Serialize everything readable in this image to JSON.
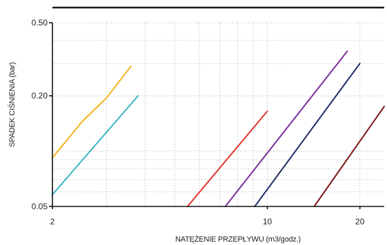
{
  "chart_data": {
    "type": "line",
    "title": "",
    "xlabel": "NATĘŻENIE PRZEPŁYWU (m3/godz.)",
    "ylabel": "SPADEK CIŚNIENIA (bar)",
    "xscale": "log",
    "yscale": "log",
    "xlim": [
      2,
      24
    ],
    "ylim": [
      0.05,
      0.5
    ],
    "xticks": [
      {
        "value": 2,
        "label": "2"
      },
      {
        "value": 10,
        "label": "10"
      },
      {
        "value": 20,
        "label": "20"
      }
    ],
    "yticks": [
      {
        "value": 0.05,
        "label": "0.05"
      },
      {
        "value": 0.2,
        "label": "0.20"
      },
      {
        "value": 0.5,
        "label": "0.50"
      }
    ],
    "grid": true,
    "legend": "none",
    "series": [
      {
        "color": "#f2b31c",
        "points": [
          [
            2,
            0.092
          ],
          [
            2.5,
            0.145
          ],
          [
            3,
            0.195
          ],
          [
            3.6,
            0.29
          ]
        ]
      },
      {
        "color": "#3fb5c4",
        "points": [
          [
            2,
            0.058
          ],
          [
            3.8,
            0.2
          ]
        ]
      },
      {
        "color": "#e2332b",
        "points": [
          [
            5.5,
            0.05
          ],
          [
            10,
            0.165
          ]
        ]
      },
      {
        "color": "#7b2d9a",
        "points": [
          [
            7.3,
            0.05
          ],
          [
            18.2,
            0.35
          ]
        ]
      },
      {
        "color": "#1f2c66",
        "points": [
          [
            9.1,
            0.05
          ],
          [
            20,
            0.3
          ]
        ]
      },
      {
        "color": "#7a1416",
        "points": [
          [
            14.2,
            0.05
          ],
          [
            24,
            0.175
          ]
        ]
      }
    ]
  }
}
